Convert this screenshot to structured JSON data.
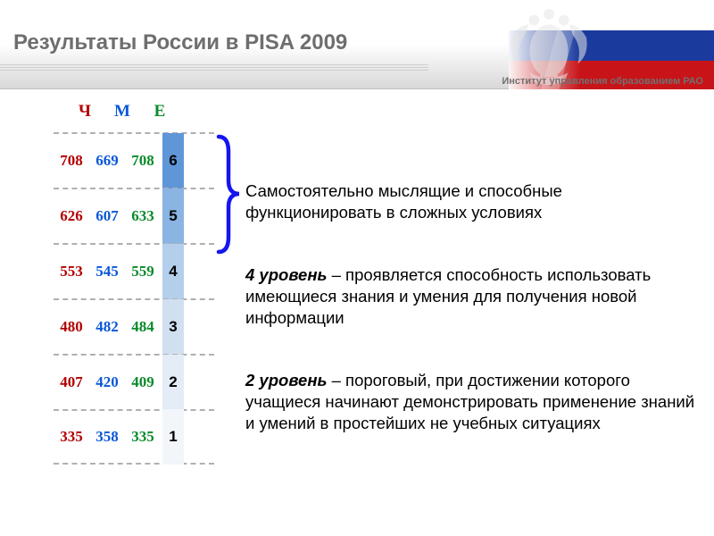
{
  "header": {
    "title": "Результаты России в PISA 2009",
    "subtitle": "Институт управления образованием РАО"
  },
  "columns": {
    "c": "Ч",
    "m": "М",
    "e": "Е"
  },
  "colors": {
    "c": "#b20000",
    "m": "#0a57d6",
    "e": "#0a8a2a",
    "brace": "#1515f0",
    "level_bg": [
      "#5f96d8",
      "#8ab4e2",
      "#b4cfec",
      "#d1e0f1",
      "#e3ecf7",
      "#f2f6fb"
    ]
  },
  "rows": [
    {
      "c": "708",
      "m": "669",
      "e": "708",
      "level": "6"
    },
    {
      "c": "626",
      "m": "607",
      "e": "633",
      "level": "5"
    },
    {
      "c": "553",
      "m": "545",
      "e": "559",
      "level": "4"
    },
    {
      "c": "480",
      "m": "482",
      "e": "484",
      "level": "3"
    },
    {
      "c": "407",
      "m": "420",
      "e": "409",
      "level": "2"
    },
    {
      "c": "335",
      "m": "358",
      "e": "335",
      "level": "1"
    }
  ],
  "descriptions": {
    "top": "Самостоятельно мыслящие и способные функционировать в сложных условиях",
    "level4_label": "4 уровень",
    "level4_text": " – проявляется способность использовать имеющиеся знания и умения для получения новой информации",
    "level2_label": "2 уровень",
    "level2_text": " – пороговый, при достижении которого учащиеся начинают демонстрировать применение знаний и умений в простейших не учебных ситуациях"
  }
}
